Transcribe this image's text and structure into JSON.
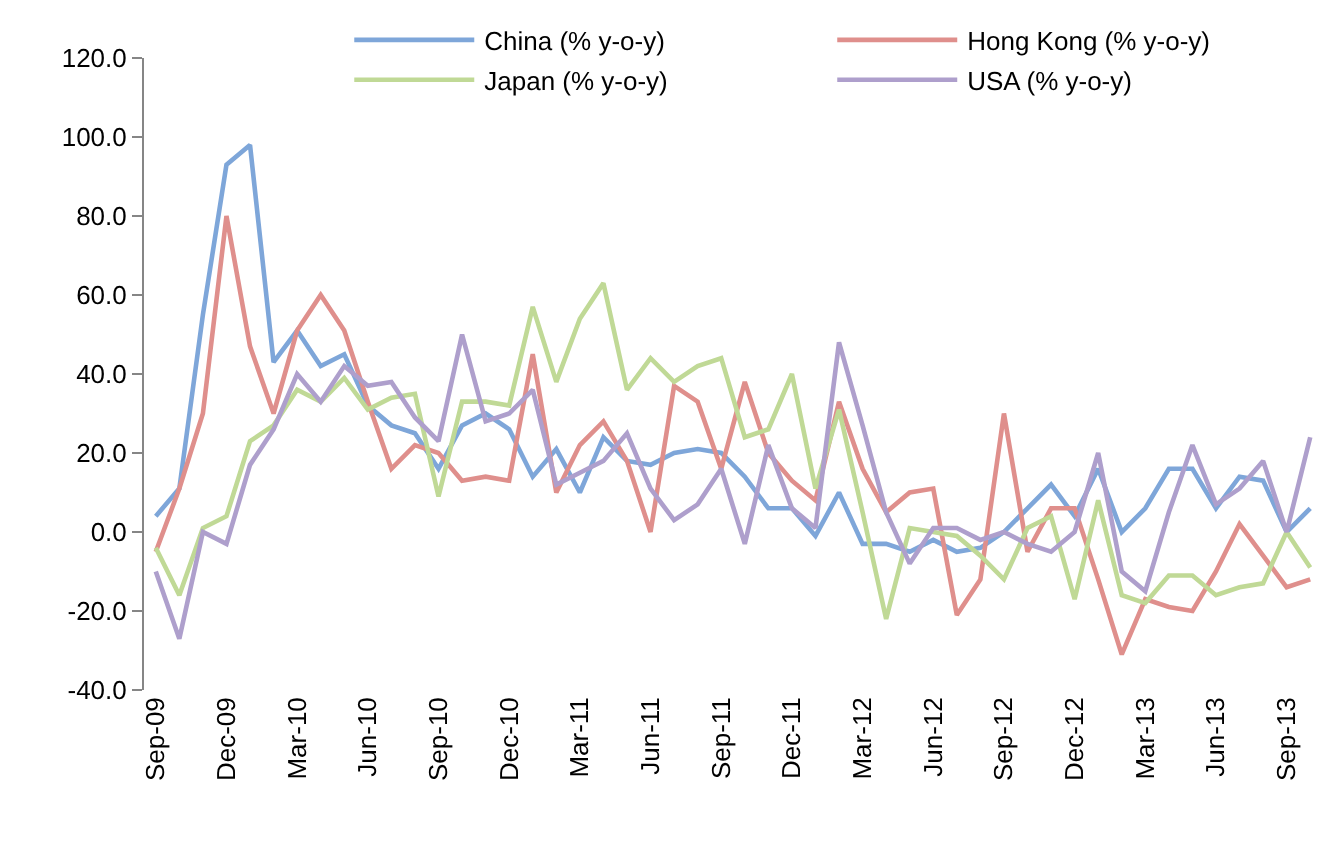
{
  "chart_data": {
    "type": "line",
    "categories": [
      "Sep-09",
      null,
      null,
      "Dec-09",
      null,
      null,
      "Mar-10",
      null,
      null,
      "Jun-10",
      null,
      null,
      "Sep-10",
      null,
      null,
      "Dec-10",
      null,
      null,
      "Mar-11",
      null,
      null,
      "Jun-11",
      null,
      null,
      "Sep-11",
      null,
      null,
      "Dec-11",
      null,
      null,
      "Mar-12",
      null,
      null,
      "Jun-12",
      null,
      null,
      "Sep-12",
      null,
      null,
      "Dec-12",
      null,
      null,
      "Mar-13",
      null,
      null,
      "Jun-13",
      null,
      null,
      "Sep-13",
      null
    ],
    "series": [
      {
        "name": "China (% y-o-y)",
        "color": "#7ea6d9",
        "values": [
          4,
          11,
          55,
          93,
          98,
          43,
          51,
          42,
          45,
          32,
          27,
          25,
          16,
          27,
          30,
          26,
          14,
          21,
          10,
          24,
          18,
          17,
          20,
          21,
          20,
          14,
          6,
          6,
          -1,
          10,
          -3,
          -3,
          -5,
          -2,
          -5,
          -4,
          0,
          6,
          12,
          4,
          16,
          0,
          6,
          16,
          16,
          6,
          14,
          13,
          0,
          6
        ]
      },
      {
        "name": "Hong Kong (% y-o-y)",
        "color": "#df8f8c",
        "values": [
          -5,
          11,
          30,
          80,
          47,
          30,
          51,
          60,
          51,
          33,
          16,
          22,
          20,
          13,
          14,
          13,
          45,
          10,
          22,
          28,
          18,
          0,
          37,
          33,
          16,
          38,
          20,
          13,
          8,
          33,
          16,
          5,
          10,
          11,
          -21,
          -12,
          30,
          -5,
          6,
          6,
          -12,
          -31,
          -17,
          -19,
          -20,
          -10,
          2,
          -6,
          -14,
          -12
        ]
      },
      {
        "name": "Japan (% y-o-y)",
        "color": "#c0d996",
        "values": [
          -4,
          -16,
          1,
          4,
          23,
          27,
          36,
          33,
          39,
          31,
          34,
          35,
          9,
          33,
          33,
          32,
          57,
          38,
          54,
          63,
          36,
          44,
          38,
          42,
          44,
          24,
          26,
          40,
          11,
          31,
          5,
          -22,
          1,
          0,
          -1,
          -6,
          -12,
          1,
          4,
          -17,
          8,
          -16,
          -18,
          -11,
          -11,
          -16,
          -14,
          -13,
          0,
          -9
        ]
      },
      {
        "name": "USA (% y-o-y)",
        "color": "#ae9fcc",
        "values": [
          -10,
          -27,
          0,
          -3,
          17,
          26,
          40,
          33,
          42,
          37,
          38,
          29,
          23,
          50,
          28,
          30,
          36,
          12,
          15,
          18,
          25,
          11,
          3,
          7,
          16,
          -3,
          22,
          6,
          1,
          48,
          27,
          5,
          -8,
          1,
          1,
          -2,
          0,
          -3,
          -5,
          0,
          20,
          -10,
          -15,
          5,
          22,
          7,
          11,
          18,
          0,
          24
        ]
      }
    ],
    "ylim": [
      -40,
      120
    ],
    "yticks": [
      {
        "value": -40,
        "label": "-40.0"
      },
      {
        "value": -20,
        "label": "-20.0"
      },
      {
        "value": 0,
        "label": "0.0"
      },
      {
        "value": 20,
        "label": "20.0"
      },
      {
        "value": 40,
        "label": "40.0"
      },
      {
        "value": 60,
        "label": "60.0"
      },
      {
        "value": 80,
        "label": "80.0"
      },
      {
        "value": 100,
        "label": "100.0"
      },
      {
        "value": 120,
        "label": "120.0"
      }
    ],
    "legend": "top",
    "grid": false,
    "marker": "none",
    "line_style": "solid"
  }
}
